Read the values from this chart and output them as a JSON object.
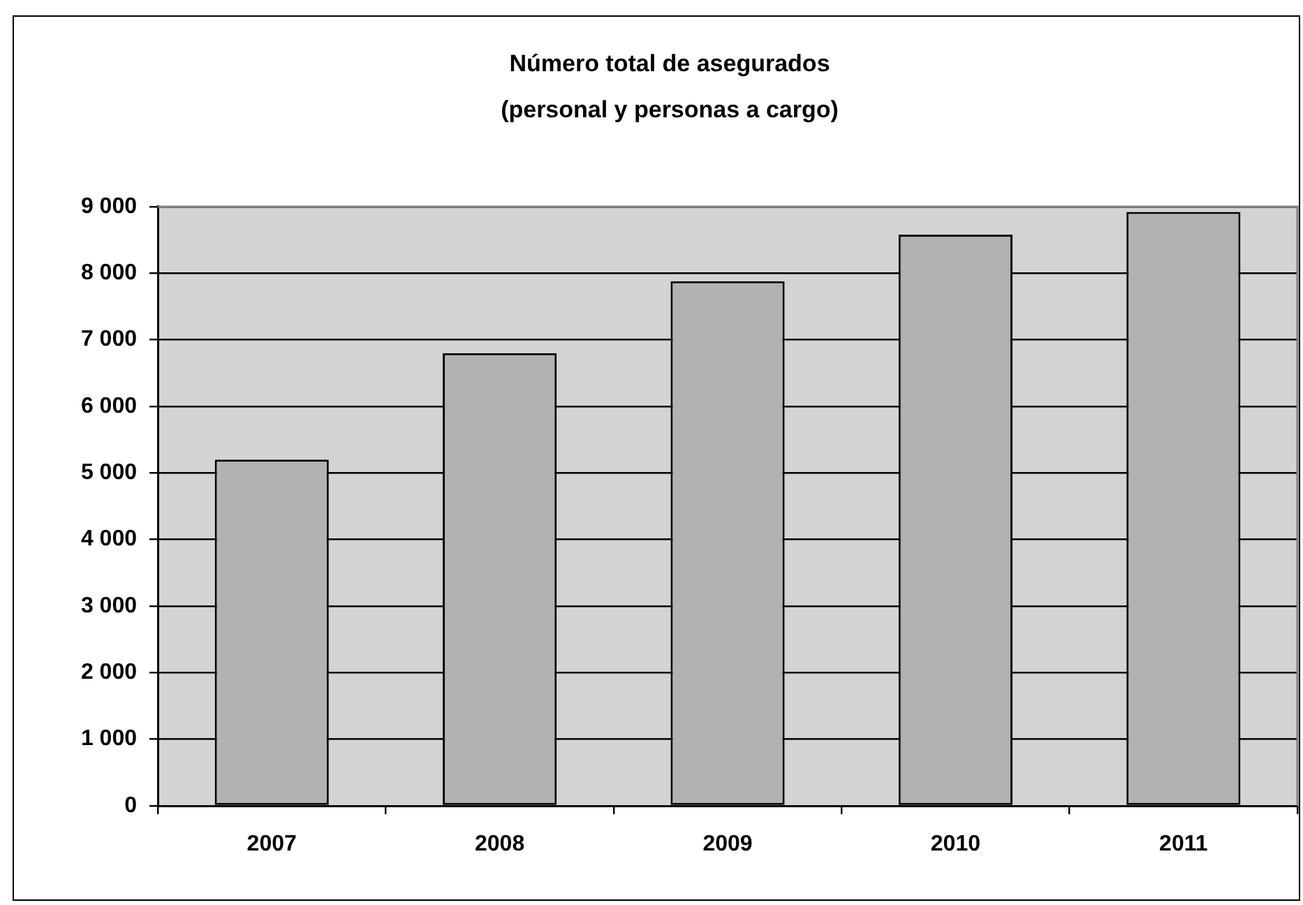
{
  "chart_data": {
    "type": "bar",
    "title": "Número total de asegurados\n(personal y personas a cargo)",
    "categories": [
      "2007",
      "2008",
      "2009",
      "2010",
      "2011"
    ],
    "values": [
      5200,
      6800,
      7880,
      8580,
      8920
    ],
    "color": "#b2b2b2",
    "ylim": [
      0,
      9000
    ],
    "yticks": [
      0,
      {
        "value": 1000,
        "label": "1 000"
      },
      {
        "value": 2000,
        "label": "2 000"
      },
      {
        "value": 3000,
        "label": "3 000"
      },
      {
        "value": 4000,
        "label": "4 000"
      },
      {
        "value": 5000,
        "label": "5 000"
      },
      {
        "value": 6000,
        "label": "6 000"
      },
      {
        "value": 7000,
        "label": "7 000"
      },
      {
        "value": 8000,
        "label": "8 000"
      },
      {
        "value": 9000,
        "label": "9 000"
      }
    ],
    "grid": "y"
  }
}
